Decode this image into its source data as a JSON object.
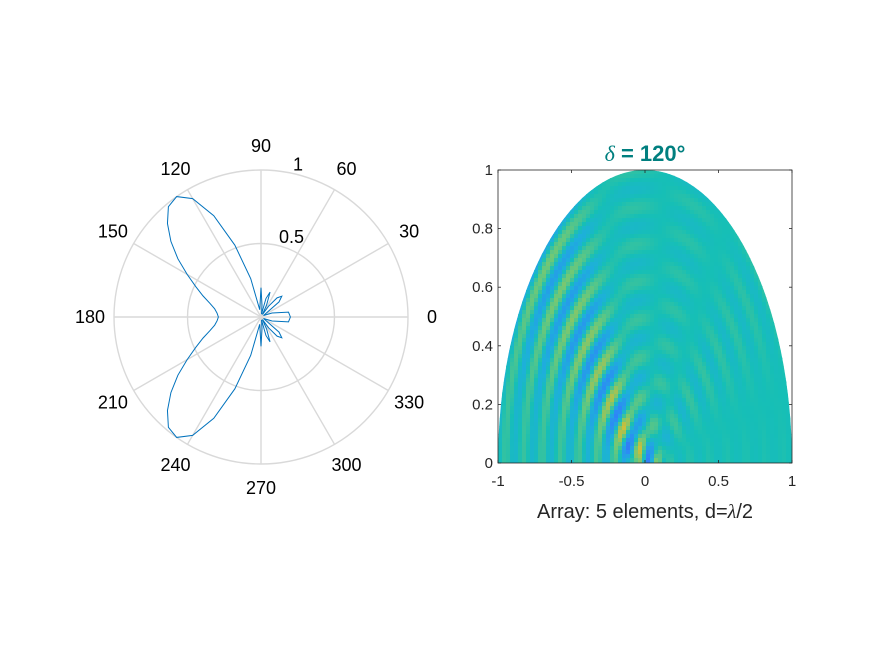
{
  "chart_data": [
    {
      "type": "line",
      "subtype": "polar",
      "angle_ticks_deg": [
        "0",
        "30",
        "60",
        "90",
        "120",
        "150",
        "180",
        "210",
        "240",
        "270",
        "300",
        "330"
      ],
      "radius_ticks": [
        "0.5",
        "1"
      ],
      "rlim": [
        0,
        1
      ],
      "series": [
        {
          "color": "#0072BD",
          "angle_deg": [
            0,
            10,
            20,
            30,
            40,
            45,
            50,
            55,
            60,
            65,
            70,
            75,
            80,
            85,
            90,
            95,
            100,
            105,
            110,
            115,
            120,
            125,
            130,
            135,
            140,
            145,
            150,
            155,
            160,
            165,
            170,
            175,
            180
          ],
          "r": [
            0.2,
            0.19,
            0.08,
            0.02,
            0.16,
            0.2,
            0.17,
            0.09,
            0.02,
            0.09,
            0.18,
            0.13,
            0.02,
            0.08,
            0.2,
            0.08,
            0.05,
            0.27,
            0.52,
            0.76,
            0.93,
            1.0,
            0.98,
            0.9,
            0.8,
            0.69,
            0.58,
            0.49,
            0.42,
            0.36,
            0.32,
            0.3,
            0.29
          ]
        }
      ],
      "mirror_about_0_deg": true
    },
    {
      "type": "heatmap",
      "title_symbol": "δ",
      "title_text": " = 120°",
      "title_color": "#007F7F",
      "xlabel_prefix": "Array: 5 elements, d=",
      "xlabel_symbol": "λ",
      "xlabel_suffix": "/2",
      "xlim": [
        -1,
        1
      ],
      "ylim": [
        0,
        1
      ],
      "xticks": [
        "-1",
        "-0.5",
        "0",
        "0.5",
        "1"
      ],
      "yticks": [
        "0",
        "0.2",
        "0.4",
        "0.6",
        "0.8",
        "1"
      ],
      "colormap": "parula",
      "domain": "half-disc of radius 1",
      "elements": 5,
      "spacing_wavelengths": 0.5,
      "phase_shift_deg": 120
    }
  ]
}
